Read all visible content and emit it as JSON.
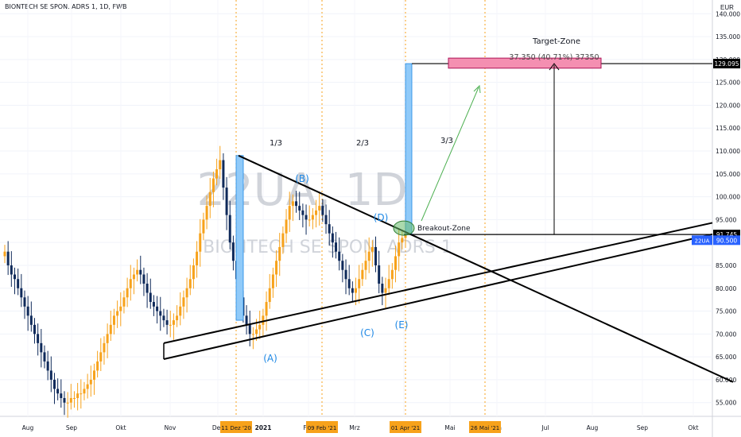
{
  "header": {
    "title": "BIONTECH SE SPON. ADRS 1, 1D, FWB",
    "currency": "EUR"
  },
  "watermark": {
    "big": "22UA, 1D",
    "small": "BIONTECH SE SPON. ADRS 1"
  },
  "chart_data": {
    "type": "candlestick",
    "symbol": "22UA",
    "timeframe": "1D",
    "ylim": [
      52,
      143
    ],
    "y_ticks": [
      55,
      60,
      65,
      70,
      75,
      80,
      85,
      90,
      95,
      100,
      105,
      110,
      115,
      120,
      125,
      130,
      135,
      140
    ],
    "y_tick_labels": [
      "55.000",
      "60.000",
      "65.000",
      "70.000",
      "75.000",
      "80.000",
      "85.000",
      "90.000",
      "95.000",
      "100.000",
      "105.000",
      "110.000",
      "115.000",
      "120.000",
      "125.000",
      "130.000",
      "135.000",
      "140.000"
    ],
    "x_ticks": [
      "Aug",
      "Sep",
      "Okt",
      "Nov",
      "Dez",
      "2021",
      "Feb",
      "Mrz",
      "Apr",
      "Mai",
      "Jun",
      "Jul",
      "Aug",
      "Sep",
      "Okt"
    ],
    "x_highlight_labels": [
      "11 Dez '20",
      "09 Feb '21",
      "01 Apr '21",
      "26 Mai '21"
    ],
    "price_labels": [
      {
        "text": "129.095",
        "value": 129.095,
        "style": "black"
      },
      {
        "text": "91.745",
        "value": 91.745,
        "style": "black"
      },
      {
        "text": "22UA",
        "value": 90.5,
        "style": "blue-tag"
      },
      {
        "text": "90.500",
        "value": 90.5,
        "style": "blue"
      }
    ],
    "colors": {
      "up": "#f7a21b",
      "down": "#0f2a5a",
      "accent_blue": "#2962ff",
      "target_box": "#f48fb1",
      "zone": "#66bb6a",
      "bar_blue": "#90caf9"
    },
    "price_series_closes": [
      88,
      85,
      83,
      82,
      80,
      78,
      76,
      74,
      72,
      70,
      68,
      66,
      64,
      62,
      60,
      58,
      57,
      56,
      55,
      55,
      56,
      56,
      57,
      57,
      58,
      59,
      60,
      62,
      64,
      66,
      68,
      70,
      72,
      74,
      75,
      76,
      78,
      80,
      82,
      83,
      84,
      83,
      81,
      79,
      77,
      76,
      75,
      74,
      73,
      72,
      72,
      73,
      74,
      76,
      78,
      80,
      82,
      85,
      88,
      92,
      95,
      98,
      101,
      104,
      106,
      108,
      102,
      96,
      90,
      86,
      82,
      78,
      74,
      72,
      70,
      70,
      71,
      72,
      74,
      77,
      80,
      83,
      86,
      89,
      92,
      95,
      98,
      99,
      98,
      97,
      96,
      95,
      95,
      96,
      97,
      98,
      96,
      94,
      92,
      90,
      88,
      86,
      84,
      82,
      80,
      79,
      80,
      82,
      84,
      86,
      88,
      89,
      85,
      81,
      79,
      80,
      82,
      84,
      87,
      90,
      91,
      92
    ],
    "waves": [
      "(A)",
      "(B)",
      "(C)",
      "(D)",
      "(E)"
    ],
    "fractions": [
      "1/3",
      "2/3",
      "3/3"
    ],
    "target": {
      "title": "Target-Zone",
      "detail": "37.350 (40.71%) 37350",
      "price": 129.095
    },
    "breakout": {
      "label": "Breakout-Zone",
      "price": 91.745
    }
  }
}
